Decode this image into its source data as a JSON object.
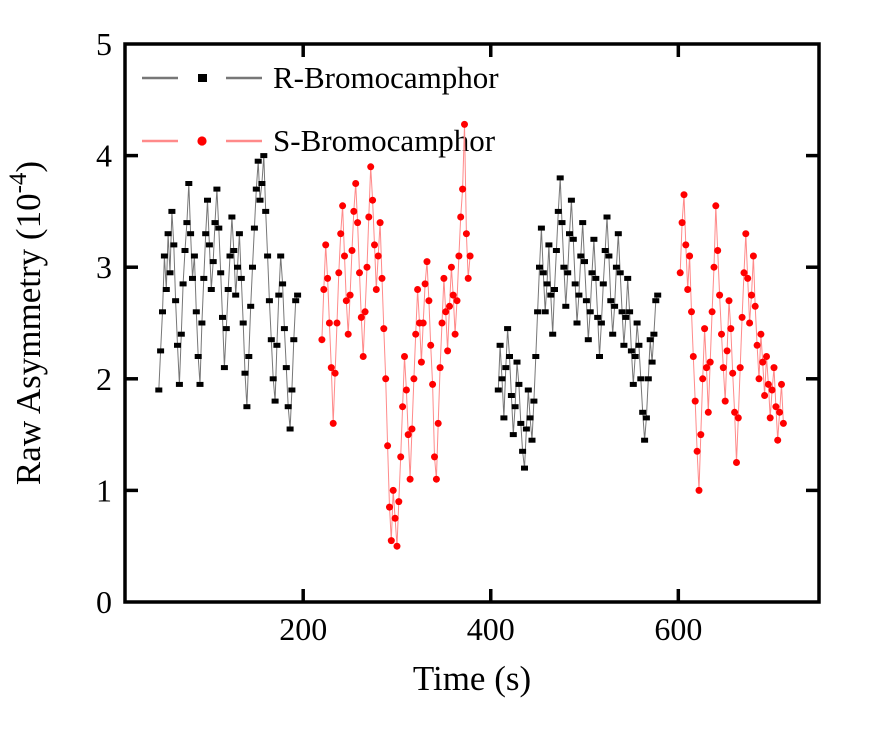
{
  "figure": {
    "background": "#ffffff",
    "axis_color": "#000000"
  },
  "legend": {
    "position": "top-left-inside",
    "entries": [
      {
        "label": "R-Bromocamphor"
      },
      {
        "label": "S-Bromocamphor"
      }
    ]
  },
  "chart_data": {
    "type": "line",
    "title": "",
    "xlabel": "Time (s)",
    "ylabel": "Raw Asymmetry (10^-4)",
    "ylabel_parts": {
      "main": "Raw Asymmetry (10",
      "sup": "-4",
      "end": ")"
    },
    "xlim": [
      10,
      750
    ],
    "ylim": [
      0,
      5
    ],
    "xticks": [
      200,
      400,
      600
    ],
    "yticks": [
      0,
      1,
      2,
      3,
      4,
      5
    ],
    "grid": false,
    "series": [
      {
        "name": "R-Bromocamphor",
        "marker": "square",
        "marker_color": "#000000",
        "line_color": "#777777",
        "segments": [
          {
            "t_start": 46,
            "t_step": 2,
            "y": [
              1.9,
              2.25,
              2.6,
              3.1,
              2.8,
              3.3,
              2.95,
              3.5,
              3.2,
              2.7,
              2.3,
              1.95,
              2.4,
              2.85,
              3.15,
              3.4,
              3.75,
              3.3,
              2.9,
              3.1,
              2.6,
              2.2,
              1.95,
              2.5,
              2.9,
              3.3,
              3.6,
              3.2,
              2.8,
              3.05,
              3.4,
              3.7,
              3.35,
              2.95,
              2.55,
              2.1,
              2.45,
              2.8,
              3.1,
              3.45,
              3.15,
              2.75,
              3.0,
              3.3,
              2.9,
              2.5,
              2.05,
              1.75,
              2.2,
              2.65,
              3.0,
              3.35,
              3.7,
              3.95,
              3.6,
              3.75,
              4.0,
              3.5,
              3.1,
              2.7,
              2.35,
              2.0,
              1.8,
              2.3,
              2.75,
              3.1,
              2.85,
              2.45,
              2.1,
              1.75,
              1.55,
              1.9,
              2.35,
              2.7,
              2.75
            ]
          },
          {
            "t_start": 408,
            "t_step": 2,
            "y": [
              1.9,
              2.3,
              2.0,
              1.65,
              2.1,
              2.45,
              2.2,
              1.85,
              1.5,
              1.75,
              2.15,
              1.95,
              1.6,
              1.35,
              1.2,
              1.55,
              1.9,
              1.65,
              1.45,
              1.8,
              2.2,
              2.6,
              3.0,
              3.35,
              2.95,
              2.6,
              2.85,
              3.2,
              2.75,
              2.4,
              2.8,
              3.15,
              3.5,
              3.8,
              3.4,
              3.0,
              2.65,
              2.95,
              3.3,
              3.6,
              3.25,
              2.85,
              2.5,
              2.75,
              3.1,
              3.4,
              3.05,
              2.7,
              2.35,
              2.6,
              2.95,
              3.25,
              2.9,
              2.55,
              2.2,
              2.5,
              2.85,
              3.15,
              3.45,
              3.1,
              2.7,
              2.4,
              2.65,
              3.0,
              3.3,
              2.95,
              2.6,
              2.3,
              2.55,
              2.9,
              2.6,
              2.25,
              1.95,
              2.2,
              2.5,
              2.3,
              2.0,
              1.7,
              1.45,
              1.65,
              2.0,
              2.35,
              2.15,
              2.4,
              2.7,
              2.75
            ]
          }
        ]
      },
      {
        "name": "S-Bromocamphor",
        "marker": "circle",
        "marker_color": "#ff0000",
        "line_color": "#ff8a8a",
        "segments": [
          {
            "t_start": 220,
            "t_step": 2,
            "y": [
              2.35,
              2.8,
              3.2,
              2.9,
              2.5,
              2.1,
              1.6,
              2.05,
              2.5,
              2.95,
              3.3,
              3.55,
              3.1,
              2.7,
              2.4,
              2.75,
              3.15,
              3.5,
              3.75,
              3.4,
              2.95,
              2.55,
              2.2,
              2.6,
              3.0,
              3.45,
              3.9,
              3.6,
              3.2,
              2.8,
              3.1,
              3.4,
              2.9,
              2.45,
              2.0,
              1.4,
              0.85,
              0.55,
              1.0,
              0.75,
              0.5,
              0.9,
              1.3,
              1.75,
              2.2,
              1.9,
              1.5,
              1.1,
              1.55,
              2.0,
              2.4,
              2.8,
              2.5,
              2.15,
              2.5,
              2.85,
              3.05,
              2.7,
              2.3,
              1.95,
              1.3,
              1.1,
              1.6,
              2.1,
              2.5,
              2.9,
              2.6,
              2.25,
              2.65,
              3.0,
              2.75,
              2.4,
              2.7,
              3.1,
              3.45,
              3.7,
              4.28,
              3.3,
              2.9,
              3.1
            ]
          },
          {
            "t_start": 602,
            "t_step": 2,
            "y": [
              2.95,
              3.4,
              3.65,
              3.2,
              2.8,
              3.1,
              2.6,
              2.2,
              1.8,
              1.35,
              1.0,
              1.5,
              2.0,
              2.45,
              2.1,
              1.7,
              2.15,
              2.6,
              3.0,
              3.55,
              3.15,
              2.75,
              2.4,
              2.1,
              1.8,
              2.25,
              2.7,
              2.45,
              2.05,
              1.7,
              1.25,
              1.65,
              2.1,
              2.55,
              2.95,
              3.3,
              2.9,
              2.5,
              2.75,
              3.1,
              2.65,
              2.3,
              2.0,
              2.4,
              2.15,
              1.85,
              2.2,
              1.95,
              1.65,
              1.9,
              2.1,
              1.75,
              1.45,
              1.7,
              1.95,
              1.6
            ]
          }
        ]
      }
    ]
  }
}
